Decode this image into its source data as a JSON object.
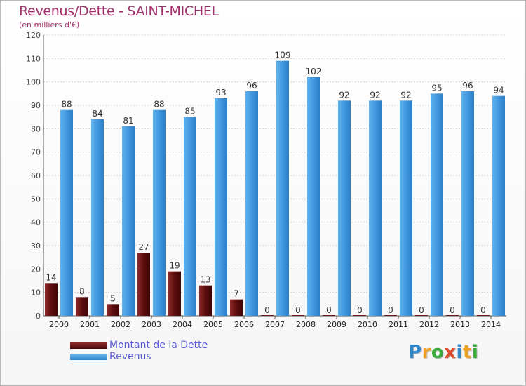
{
  "header": {
    "title": "Revenus/Dette - SAINT-MICHEL",
    "subtitle": "(en milliers d'€)"
  },
  "chart_data": {
    "type": "bar",
    "title": "Revenus/Dette - SAINT-MICHEL",
    "subtitle": "(en milliers d'€)",
    "categories": [
      "2000",
      "2001",
      "2002",
      "2003",
      "2004",
      "2005",
      "2006",
      "2007",
      "2008",
      "2009",
      "2010",
      "2011",
      "2012",
      "2013",
      "2014"
    ],
    "series": [
      {
        "name": "Montant de la Dette",
        "color": "#6e1414",
        "values": [
          14,
          8,
          5,
          27,
          19,
          13,
          7,
          0,
          0,
          0,
          0,
          0,
          0,
          0,
          0
        ]
      },
      {
        "name": "Revenus",
        "color": "#4aa3e8",
        "values": [
          88,
          84,
          81,
          88,
          85,
          93,
          96,
          109,
          102,
          92,
          92,
          92,
          95,
          96,
          94
        ]
      }
    ],
    "ylim": [
      0,
      120
    ],
    "yticks": [
      0,
      10,
      20,
      30,
      40,
      50,
      60,
      70,
      80,
      90,
      100,
      110,
      120
    ],
    "grid": true,
    "data_labels": true,
    "legend_position": "bottom-left"
  },
  "legend": {
    "items": [
      {
        "label": "Montant de la Dette",
        "color": "#6e1414"
      },
      {
        "label": "Revenus",
        "color": "#4aa3e8"
      }
    ]
  },
  "logo": {
    "letters": [
      "P",
      "r",
      "o",
      "x",
      "i",
      "t",
      "i"
    ],
    "text": "Proxiti"
  }
}
